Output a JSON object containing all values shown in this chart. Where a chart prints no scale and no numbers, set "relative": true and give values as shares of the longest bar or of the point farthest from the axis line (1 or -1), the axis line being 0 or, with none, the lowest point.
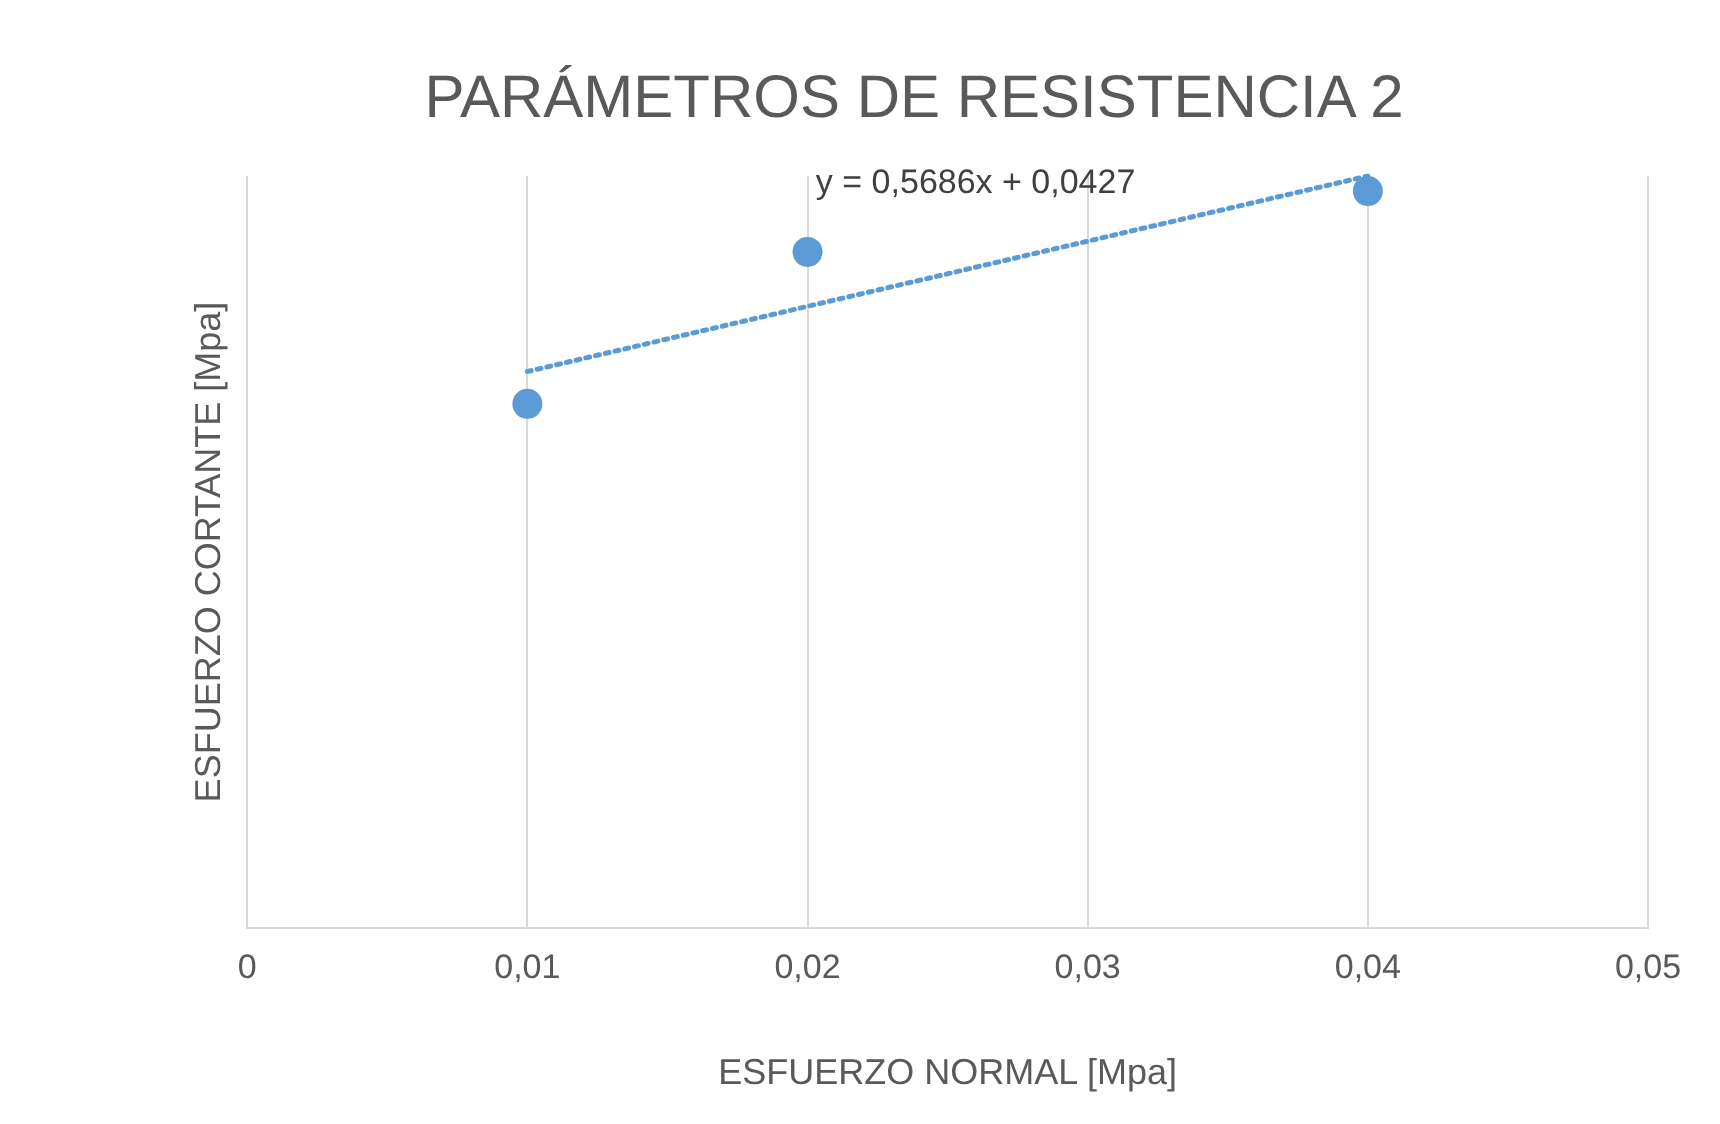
{
  "chart_data": {
    "type": "scatter",
    "title": "PARÁMETROS DE RESISTENCIA 2",
    "xlabel": "ESFUERZO NORMAL [Mpa]",
    "ylabel": "ESFUERZO CORTANTE [Mpa]",
    "relative": true,
    "series": [
      {
        "color": "#5b9bd5",
        "x": [
          0.01,
          0.02,
          0.04
        ],
        "values": [
          0.697,
          0.899,
          0.98
        ],
        "marker": "circle"
      },
      {
        "type": "line",
        "color": "#5b9bd5",
        "x": [
          0.01,
          0.04
        ],
        "values": [
          0.74,
          1
        ],
        "line_style": "dotted",
        "marker": "none"
      }
    ],
    "annotations": [
      "y = 0,5686x + 0,0427"
    ],
    "xlim": [
      0,
      0.05
    ],
    "xticks": [
      {
        "value": 0,
        "label": "0"
      },
      {
        "value": 0.01,
        "label": "0,01"
      },
      {
        "value": 0.02,
        "label": "0,02"
      },
      {
        "value": 0.03,
        "label": "0,03"
      },
      {
        "value": 0.04,
        "label": "0,04"
      },
      {
        "value": 0.05,
        "label": "0,05"
      }
    ],
    "grid": "x",
    "legend": false
  }
}
